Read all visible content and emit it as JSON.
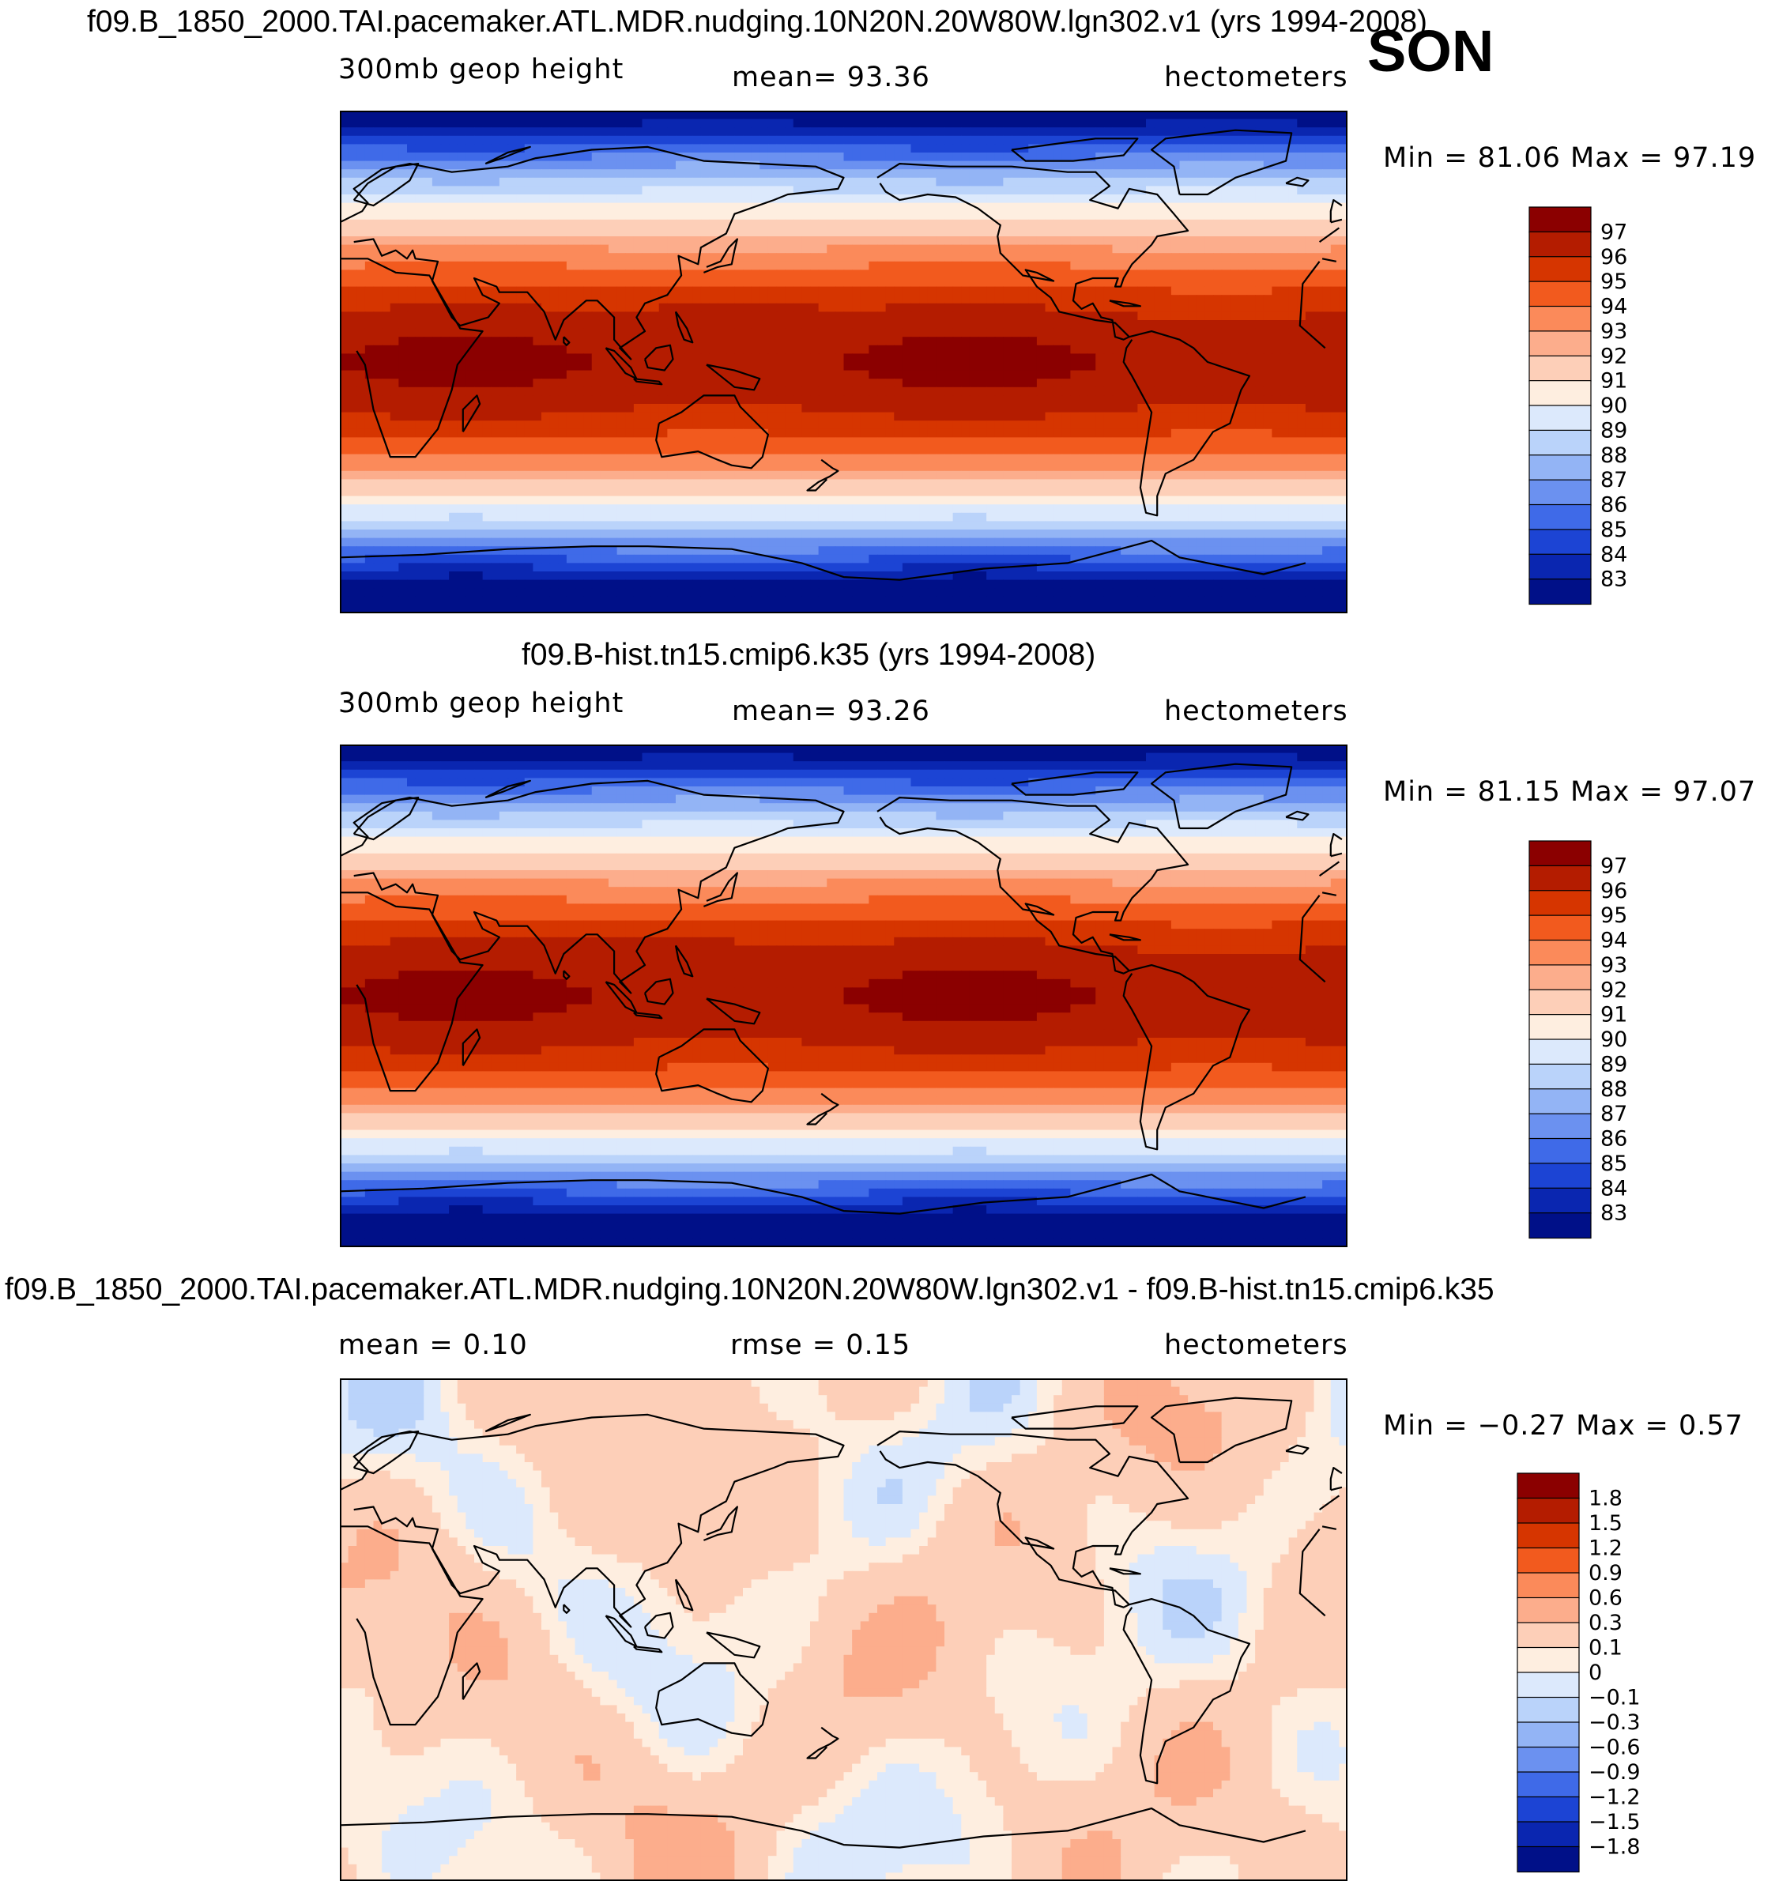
{
  "season": "SON",
  "panels": [
    {
      "id": "panel-1",
      "title": "f09.B_1850_2000.TAI.pacemaker.ATL.MDR.nudging.10N20N.20W80W.lgn302.v1 (yrs 1994-2008)",
      "variable": "300mb  geop  height",
      "stat_text": "mean=   93.36",
      "units": "hectometers",
      "minmax": "Min =   81.06  Max =   97.19",
      "kind": "height",
      "colorbar": {
        "labels": [
          "97",
          "96",
          "95",
          "94",
          "93",
          "92",
          "91",
          "90",
          "89",
          "88",
          "87",
          "86",
          "85",
          "84",
          "83"
        ],
        "colors": [
          "#8b0000",
          "#b41c00",
          "#d63500",
          "#f25a1e",
          "#fb8a5a",
          "#fcad8c",
          "#fdcfb8",
          "#feeee0",
          "#dce9fc",
          "#bad3fa",
          "#93b4f5",
          "#6b91f0",
          "#3f6ae8",
          "#1c44d4",
          "#0a26b0",
          "#001088"
        ]
      }
    },
    {
      "id": "panel-2",
      "title": "f09.B-hist.tn15.cmip6.k35 (yrs 1994-2008)",
      "variable": "300mb  geop  height",
      "stat_text": "mean=   93.26",
      "units": "hectometers",
      "minmax": "Min =   81.15  Max =   97.07",
      "kind": "height",
      "colorbar": {
        "labels": [
          "97",
          "96",
          "95",
          "94",
          "93",
          "92",
          "91",
          "90",
          "89",
          "88",
          "87",
          "86",
          "85",
          "84",
          "83"
        ],
        "colors": [
          "#8b0000",
          "#b41c00",
          "#d63500",
          "#f25a1e",
          "#fb8a5a",
          "#fcad8c",
          "#fdcfb8",
          "#feeee0",
          "#dce9fc",
          "#bad3fa",
          "#93b4f5",
          "#6b91f0",
          "#3f6ae8",
          "#1c44d4",
          "#0a26b0",
          "#001088"
        ]
      }
    },
    {
      "id": "panel-3",
      "title": "f09.B_1850_2000.TAI.pacemaker.ATL.MDR.nudging.10N20N.20W80W.lgn302.v1 - f09.B-hist.tn15.cmip6.k35",
      "variable": "mean =    0.10",
      "stat_text": "rmse =    0.15",
      "units": "hectometers",
      "minmax": "Min =   −0.27  Max =    0.57",
      "kind": "diff",
      "colorbar": {
        "labels": [
          "1.8",
          "1.5",
          "1.2",
          "0.9",
          "0.6",
          "0.3",
          "0.1",
          "0",
          "−0.1",
          "−0.3",
          "−0.6",
          "−0.9",
          "−1.2",
          "−1.5",
          "−1.8"
        ],
        "colors": [
          "#8b0000",
          "#b41c00",
          "#d63500",
          "#f25a1e",
          "#fb8a5a",
          "#fcad8c",
          "#fdcfb8",
          "#feeee0",
          "#dce9fc",
          "#bad3fa",
          "#93b4f5",
          "#6b91f0",
          "#3f6ae8",
          "#1c44d4",
          "#0a26b0",
          "#001088"
        ]
      }
    }
  ]
}
